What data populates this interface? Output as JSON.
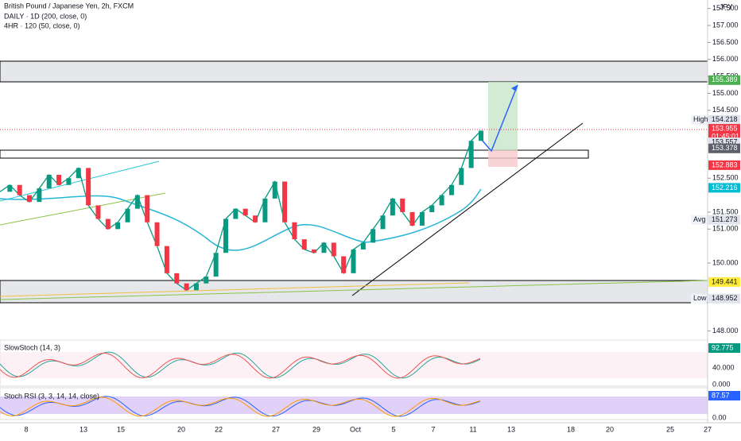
{
  "header": {
    "symbol": "British Pound / Japanese Yen, 2h, FXCM",
    "line2": "DAILY · 1D (200, close, 0)",
    "line3": "4HR · 120 (50, close, 0)",
    "currency": "JPY"
  },
  "price_axis": {
    "ylim": [
      147.8,
      157.75
    ],
    "ticks": [
      {
        "value": 157.5,
        "label": "157.500"
      },
      {
        "value": 157,
        "label": "157.000"
      },
      {
        "value": 156.5,
        "label": "156.500"
      },
      {
        "value": 156,
        "label": "156.000"
      },
      {
        "value": 155.5,
        "label": "155.500"
      },
      {
        "value": 155,
        "label": "155.000"
      },
      {
        "value": 154.5,
        "label": "154.500"
      },
      {
        "value": 152.5,
        "label": "152.500"
      },
      {
        "value": 151.5,
        "label": "151.500"
      },
      {
        "value": 151,
        "label": "151.000"
      },
      {
        "value": 150,
        "label": "150.000"
      },
      {
        "value": 148,
        "label": "148.000"
      }
    ]
  },
  "price_badges": [
    {
      "value": 155.389,
      "label": "155.389",
      "color": "#4caf50"
    },
    {
      "value": 154.218,
      "label": "154.218",
      "tag": "High",
      "color": "#e0e3eb"
    },
    {
      "value": 153.955,
      "label": "153.955",
      "color": "#f23645"
    },
    {
      "value": 153.72,
      "label": "01:45:01",
      "color": "#f23645"
    },
    {
      "value": 153.557,
      "label": "153.557",
      "color": "#e0e3eb"
    },
    {
      "value": 153.378,
      "label": "153.378",
      "color": "#5d606b"
    },
    {
      "value": 152.883,
      "label": "152.883",
      "color": "#f23645"
    },
    {
      "value": 152.216,
      "label": "152.216",
      "color": "#00bcd4"
    },
    {
      "value": 151.273,
      "label": "151.273",
      "tag": "Avg",
      "color": "#e0e3eb"
    },
    {
      "value": 149.441,
      "label": "149.441",
      "color": "#ffeb3b"
    },
    {
      "value": 148.952,
      "label": "148.952",
      "tag": "Low",
      "color": "#e0e3eb"
    }
  ],
  "price_series": {
    "name": "GBPJPY close",
    "values": [
      152.1,
      152.3,
      152.0,
      151.8,
      152.2,
      152.6,
      152.3,
      152.5,
      152.8,
      151.7,
      151.3,
      151.0,
      151.2,
      151.6,
      152.0,
      151.2,
      150.5,
      149.7,
      149.4,
      149.2,
      149.4,
      149.6,
      150.3,
      151.3,
      151.6,
      151.4,
      151.2,
      151.9,
      152.4,
      151.2,
      150.7,
      150.4,
      150.3,
      150.6,
      150.2,
      149.7,
      150.4,
      150.6,
      151.0,
      151.4,
      151.9,
      151.5,
      151.1,
      151.5,
      151.7,
      152.0,
      152.3,
      152.8,
      153.6,
      153.9
    ]
  },
  "indicators": {
    "slow_stoch": {
      "title": "SlowStoch (14, 3)",
      "badge": "92.775",
      "ticks": [
        "40.000",
        "0.000"
      ]
    },
    "stoch_rsi": {
      "title": "Stoch RSI (3, 3, 14, 14, close)",
      "badge": "87.57",
      "ticks": [
        "0.00"
      ]
    }
  },
  "time_axis": [
    "8",
    "13",
    "15",
    "20",
    "22",
    "27",
    "29",
    "Oct",
    "5",
    "7",
    "11",
    "13",
    "18",
    "20",
    "25",
    "27"
  ]
}
